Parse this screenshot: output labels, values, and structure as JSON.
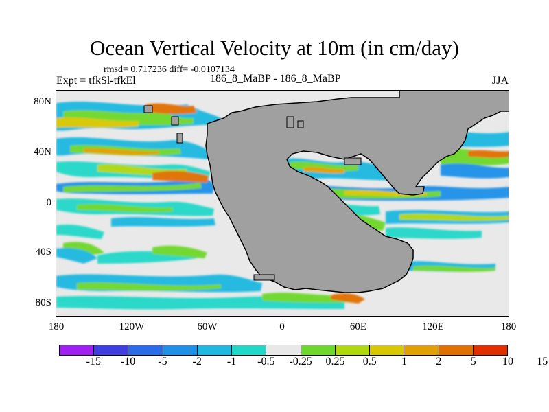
{
  "title": "Ocean Vertical Velocity at 10m (in cm/day)",
  "stats": "rmsd= 0.717236 diff= -0.0107134",
  "left_label": "Expt = tfkSl-tfkEl",
  "center_label": "186_8_MaBP - 186_8_MaBP",
  "right_label": "JJA",
  "y_ticks": [
    "80N",
    "40N",
    "0",
    "40S",
    "80S"
  ],
  "x_ticks": [
    "180",
    "120W",
    "60W",
    "0",
    "60E",
    "120E",
    "180"
  ],
  "colorbar": {
    "colors": [
      "#a020f0",
      "#3f3fe0",
      "#2a6ce8",
      "#1e90e8",
      "#1fb8e0",
      "#20d8c8",
      "#e8e8e8",
      "#6ed82a",
      "#b0d80c",
      "#d8c800",
      "#e0a000",
      "#e07000",
      "#e03000"
    ],
    "labels": [
      "-15",
      "-10",
      "-5",
      "-2",
      "-1",
      "-0.5",
      "-0.25",
      "0.25",
      "0.5",
      "1",
      "2",
      "5",
      "10",
      "15"
    ]
  },
  "land_color": "#a0a0a0"
}
